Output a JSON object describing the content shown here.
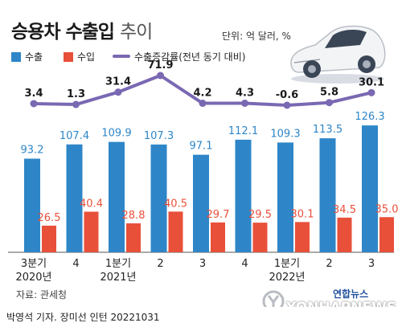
{
  "header": {
    "title": "승용차 수출입",
    "title_sub": "추이",
    "unit": "단위: 억 달러, %"
  },
  "legend": {
    "export": "수출",
    "import": "수입",
    "growth": "수출증감률(전년 동기 대비)"
  },
  "colors": {
    "export": "#2e86c8",
    "import": "#e8503a",
    "growth": "#7a68b3"
  },
  "chart_data": {
    "type": "bar",
    "categories": [
      "3분기",
      "4",
      "1분기",
      "2",
      "3",
      "4",
      "1분기",
      "2",
      "3"
    ],
    "year_labels": [
      {
        "index": 0,
        "label": "2020년"
      },
      {
        "index": 2,
        "label": "2021년"
      },
      {
        "index": 6,
        "label": "2022년"
      }
    ],
    "series": [
      {
        "name": "수출",
        "values": [
          93.2,
          107.4,
          109.9,
          107.3,
          97.1,
          112.1,
          109.3,
          113.5,
          126.3
        ]
      },
      {
        "name": "수입",
        "values": [
          26.5,
          40.4,
          28.8,
          40.5,
          29.7,
          29.5,
          30.1,
          34.5,
          35.0
        ]
      }
    ],
    "line_series": {
      "name": "수출증감률(전년 동기 대비)",
      "values": [
        3.4,
        1.3,
        31.4,
        71.9,
        4.2,
        4.3,
        -0.6,
        5.8,
        30.1
      ]
    },
    "value_labels": {
      "export": [
        "93.2",
        "107.4",
        "109.9",
        "107.3",
        "97.1",
        "112.1",
        "109.3",
        "113.5",
        "126.3"
      ],
      "import": [
        "26.5",
        "40.4",
        "28.8",
        "40.5",
        "29.7",
        "29.5",
        "30.1",
        "34.5",
        "35.0"
      ],
      "growth": [
        "3.4",
        "1.3",
        "31.4",
        "71.9",
        "4.2",
        "4.3",
        "-0.6",
        "5.8",
        "30.1"
      ]
    },
    "xlabel": "",
    "ylabel": "",
    "ylim": [
      0,
      150
    ],
    "grid": false,
    "legend_position": "top-left"
  },
  "footer": {
    "source": "자료: 관세청",
    "logo_cn": "연합뉴스",
    "logo_en": "YONHAPNEWS",
    "credit": "박영석 기자. 장미선 인턴  20221031"
  }
}
